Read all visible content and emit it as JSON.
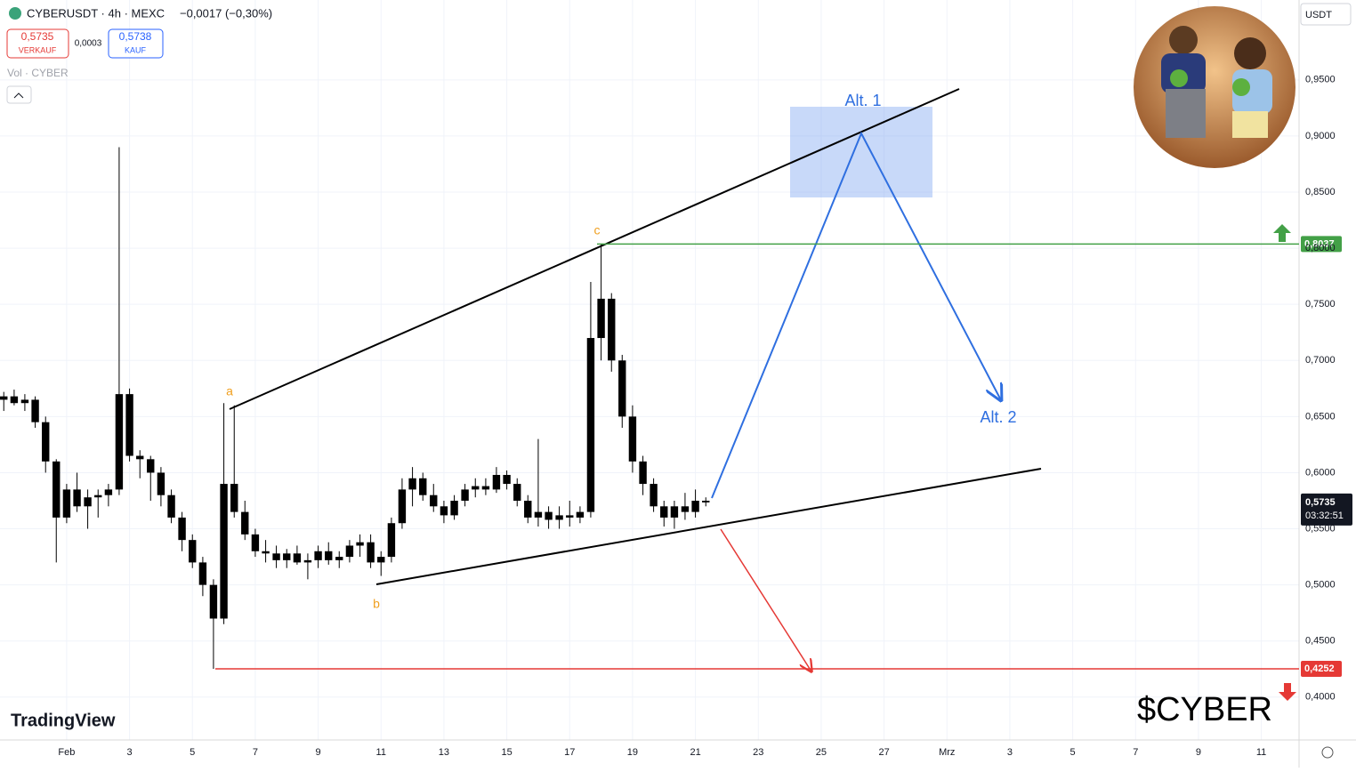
{
  "chart_data": {
    "type": "candlestick",
    "header": {
      "symbol": "CYBERUSDT · 4h · MEXC",
      "change": "−0,0017 (−0,30%)",
      "sell_price": "0,5735",
      "sell_label": "VERKAUF",
      "spread": "0,0003",
      "buy_price": "0,5738",
      "buy_label": "KAUF",
      "volume": "Vol · CYBER",
      "currency": "USDT",
      "brand": "TradingView",
      "watermark": "$CYBER"
    },
    "annotations": {
      "a": "a",
      "b": "b",
      "c": "c",
      "alt1": "Alt. 1",
      "alt2": "Alt. 2"
    },
    "xlim": [
      -1.12,
      40.2
    ],
    "xticks": [
      {
        "value": 1,
        "label": "Feb"
      },
      3,
      5,
      7,
      9,
      11,
      13,
      15,
      17,
      19,
      21,
      23,
      25,
      27,
      {
        "value": 29,
        "label": "Mrz"
      },
      {
        "value": 31,
        "label": "3"
      },
      {
        "value": 33,
        "label": "5"
      },
      {
        "value": 35,
        "label": "7"
      },
      {
        "value": 37,
        "label": "9"
      },
      {
        "value": 39,
        "label": "11"
      }
    ],
    "ylim": [
      0.3618,
      1.0212
    ],
    "yticks": [
      {
        "value": 0.95,
        "label": "0,9500"
      },
      {
        "value": 0.9,
        "label": "0,9000"
      },
      {
        "value": 0.85,
        "label": "0,8500"
      },
      {
        "value": 0.8,
        "label": "0,8000"
      },
      {
        "value": 0.75,
        "label": "0,7500"
      },
      {
        "value": 0.7,
        "label": "0,7000"
      },
      {
        "value": 0.65,
        "label": "0,6500"
      },
      {
        "value": 0.6,
        "label": "0,6000"
      },
      {
        "value": 0.55,
        "label": "0,5500"
      },
      {
        "value": 0.5,
        "label": "0,5000"
      },
      {
        "value": 0.45,
        "label": "0,4500"
      },
      {
        "value": 0.4,
        "label": "0,4000"
      }
    ],
    "grid": true,
    "color": "#000000",
    "candles": {
      "x": [
        -1.0,
        -0.67,
        -0.33,
        0.0,
        0.33,
        0.67,
        1.0,
        1.33,
        1.67,
        2.0,
        2.33,
        2.67,
        3.0,
        3.33,
        3.67,
        4.0,
        4.33,
        4.67,
        5.0,
        5.33,
        5.67,
        6.0,
        6.33,
        6.67,
        7.0,
        7.33,
        7.67,
        8.0,
        8.33,
        8.67,
        9.0,
        9.33,
        9.67,
        10.0,
        10.33,
        10.67,
        11.0,
        11.33,
        11.67,
        12.0,
        12.33,
        12.67,
        13.0,
        13.33,
        13.67,
        14.0,
        14.33,
        14.67,
        15.0,
        15.33,
        15.67,
        16.0,
        16.33,
        16.67,
        17.0,
        17.33,
        17.67,
        18.0,
        18.33,
        18.67,
        19.0,
        19.33,
        19.67,
        20.0,
        20.33,
        20.67,
        21.0,
        21.33
      ],
      "open": [
        0.665,
        0.668,
        0.662,
        0.665,
        0.645,
        0.61,
        0.56,
        0.585,
        0.57,
        0.578,
        0.58,
        0.585,
        0.67,
        0.615,
        0.612,
        0.6,
        0.58,
        0.56,
        0.54,
        0.52,
        0.5,
        0.47,
        0.59,
        0.565,
        0.545,
        0.53,
        0.528,
        0.522,
        0.528,
        0.52,
        0.522,
        0.53,
        0.522,
        0.525,
        0.535,
        0.538,
        0.52,
        0.525,
        0.555,
        0.585,
        0.595,
        0.58,
        0.57,
        0.562,
        0.575,
        0.585,
        0.588,
        0.585,
        0.598,
        0.59,
        0.575,
        0.56,
        0.565,
        0.558,
        0.562,
        0.56,
        0.565,
        0.72,
        0.755,
        0.7,
        0.65,
        0.61,
        0.59,
        0.57,
        0.56,
        0.57,
        0.565,
        0.575
      ],
      "high": [
        0.672,
        0.674,
        0.67,
        0.668,
        0.65,
        0.612,
        0.59,
        0.6,
        0.585,
        0.585,
        0.59,
        0.89,
        0.675,
        0.62,
        0.615,
        0.605,
        0.585,
        0.565,
        0.545,
        0.525,
        0.505,
        0.662,
        0.66,
        0.575,
        0.55,
        0.54,
        0.535,
        0.532,
        0.535,
        0.528,
        0.535,
        0.538,
        0.53,
        0.54,
        0.545,
        0.545,
        0.53,
        0.56,
        0.595,
        0.605,
        0.6,
        0.59,
        0.575,
        0.58,
        0.59,
        0.595,
        0.595,
        0.605,
        0.602,
        0.595,
        0.58,
        0.63,
        0.57,
        0.57,
        0.575,
        0.57,
        0.77,
        0.8037,
        0.76,
        0.705,
        0.66,
        0.615,
        0.595,
        0.575,
        0.575,
        0.582,
        0.585,
        0.578
      ],
      "low": [
        0.655,
        0.66,
        0.655,
        0.64,
        0.6,
        0.52,
        0.555,
        0.565,
        0.55,
        0.56,
        0.57,
        0.58,
        0.61,
        0.595,
        0.575,
        0.57,
        0.555,
        0.53,
        0.515,
        0.49,
        0.4252,
        0.465,
        0.56,
        0.54,
        0.525,
        0.52,
        0.515,
        0.515,
        0.518,
        0.505,
        0.515,
        0.518,
        0.515,
        0.52,
        0.525,
        0.515,
        0.508,
        0.52,
        0.55,
        0.57,
        0.575,
        0.565,
        0.555,
        0.558,
        0.57,
        0.578,
        0.58,
        0.582,
        0.585,
        0.57,
        0.555,
        0.552,
        0.55,
        0.55,
        0.552,
        0.555,
        0.56,
        0.7,
        0.69,
        0.64,
        0.6,
        0.58,
        0.565,
        0.552,
        0.55,
        0.558,
        0.56,
        0.57
      ],
      "close": [
        0.668,
        0.662,
        0.665,
        0.645,
        0.61,
        0.56,
        0.585,
        0.57,
        0.578,
        0.58,
        0.585,
        0.67,
        0.615,
        0.612,
        0.6,
        0.58,
        0.56,
        0.54,
        0.52,
        0.5,
        0.47,
        0.59,
        0.565,
        0.545,
        0.53,
        0.528,
        0.522,
        0.528,
        0.52,
        0.522,
        0.53,
        0.522,
        0.525,
        0.535,
        0.538,
        0.52,
        0.525,
        0.555,
        0.585,
        0.595,
        0.58,
        0.57,
        0.562,
        0.575,
        0.585,
        0.588,
        0.585,
        0.598,
        0.59,
        0.575,
        0.56,
        0.565,
        0.558,
        0.562,
        0.56,
        0.565,
        0.72,
        0.755,
        0.7,
        0.65,
        0.61,
        0.59,
        0.57,
        0.56,
        0.57,
        0.565,
        0.575,
        0.5735
      ]
    },
    "levels": [
      {
        "value": 0.8037,
        "label": "0,8037",
        "color": "#43a047"
      },
      {
        "value": 0.4252,
        "label": "0,4252",
        "color": "#e53935"
      }
    ],
    "last_price": {
      "value": 0.5735,
      "label": "0,5735",
      "countdown": "03:32:51"
    }
  }
}
